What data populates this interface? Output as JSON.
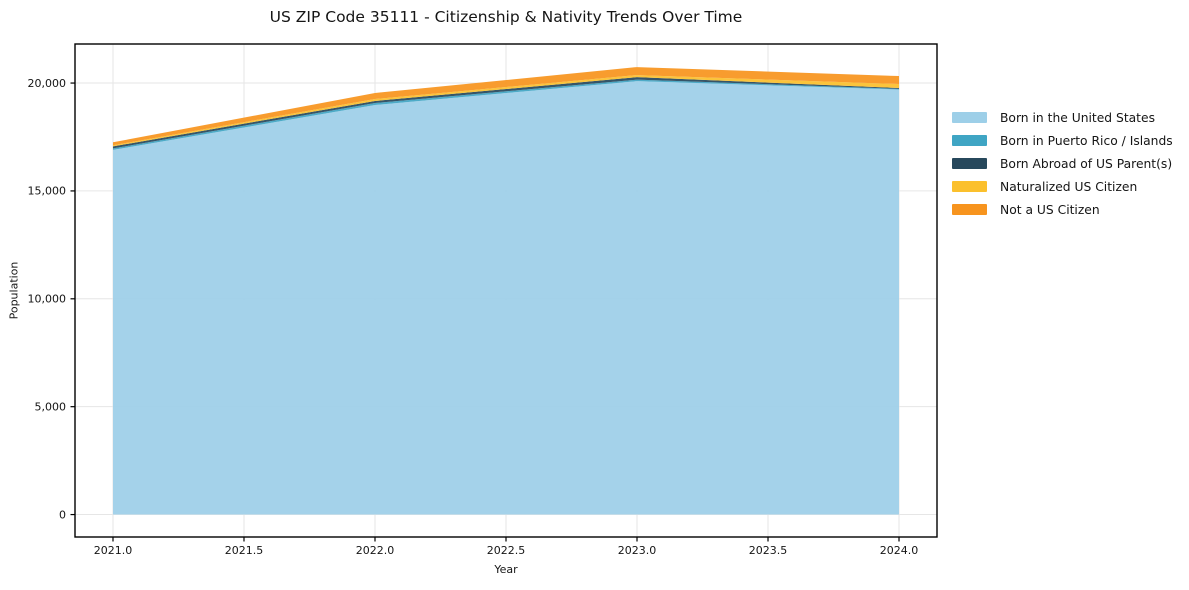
{
  "title": "US ZIP Code 35111 - Citizenship & Nativity Trends Over Time",
  "chart_data": {
    "type": "area",
    "stacked": true,
    "title": "US ZIP Code 35111 - Citizenship & Nativity Trends Over Time",
    "xlabel": "Year",
    "ylabel": "Population",
    "x": [
      2021,
      2022,
      2023,
      2024
    ],
    "series": [
      {
        "name": "Born in the United States",
        "color": "#9DCFE8",
        "values": [
          16900,
          18980,
          20090,
          19700
        ]
      },
      {
        "name": "Born in Puerto Rico / Islands",
        "color": "#3FA5C4",
        "values": [
          70,
          95,
          70,
          30
        ]
      },
      {
        "name": "Born Abroad of US Parent(s)",
        "color": "#27485C",
        "values": [
          95,
          95,
          115,
          40
        ]
      },
      {
        "name": "Naturalized US Citizen",
        "color": "#FBC02D",
        "values": [
          50,
          90,
          95,
          185
        ]
      },
      {
        "name": "Not a US Citizen",
        "color": "#F7941E",
        "values": [
          140,
          280,
          370,
          370
        ]
      }
    ],
    "xlim": [
      2020.855,
      2024.145
    ],
    "ylim": [
      -1040,
      21810
    ],
    "x_ticks": {
      "values": [
        2021,
        2021.5,
        2022,
        2022.5,
        2023,
        2023.5,
        2024
      ],
      "labels": [
        "2021.0",
        "2021.5",
        "2022.0",
        "2022.5",
        "2023.0",
        "2023.5",
        "2024.0"
      ]
    },
    "y_ticks": {
      "values": [
        0,
        5000,
        10000,
        15000,
        20000
      ],
      "labels": [
        "0",
        "5,000",
        "10,000",
        "15,000",
        "20,000"
      ]
    },
    "grid": true,
    "legend_position": "outside-right"
  },
  "colors": {
    "background": "#ffffff",
    "grid": "#e6e6e6",
    "spine": "#000000",
    "tick_text": "#151515"
  }
}
